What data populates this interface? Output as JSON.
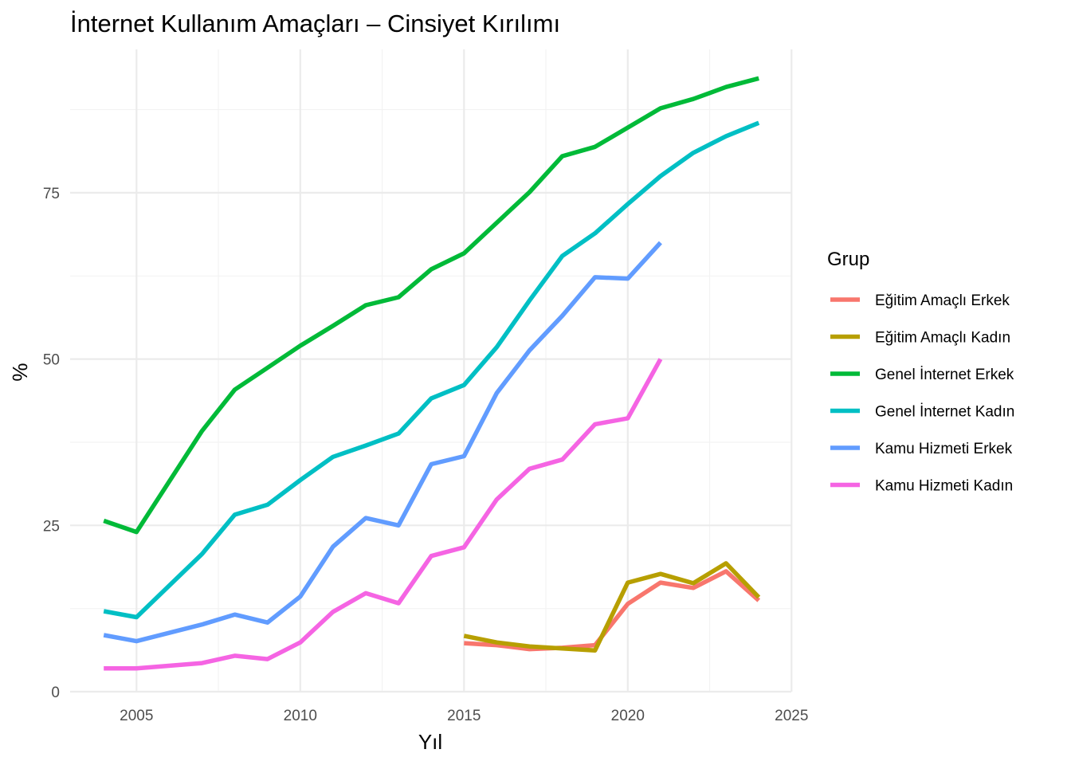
{
  "chart_data": {
    "type": "line",
    "title": "İnternet Kullanım Amaçları – Cinsiyet Kırılımı",
    "xlabel": "Yıl",
    "ylabel": "%",
    "xlim": [
      2003.8,
      2024.2
    ],
    "ylim": [
      0,
      93
    ],
    "x_ticks": [
      2005,
      2010,
      2015,
      2020,
      2025
    ],
    "y_ticks": [
      0,
      25,
      50,
      75
    ],
    "grid": true,
    "legend": {
      "title": "Grup",
      "position": "right"
    },
    "series": [
      {
        "name": "Eğitim Amaçlı Erkek",
        "color": "#F8766D",
        "x": [
          2015,
          2016,
          2017,
          2018,
          2019,
          2020,
          2021,
          2022,
          2023,
          2024
        ],
        "values": [
          7.3,
          7.0,
          6.4,
          6.6,
          7.0,
          13.2,
          16.4,
          15.6,
          18.1,
          13.7
        ]
      },
      {
        "name": "Eğitim Amaçlı Kadın",
        "color": "#B79F00",
        "x": [
          2015,
          2016,
          2017,
          2018,
          2019,
          2020,
          2021,
          2022,
          2023,
          2024
        ],
        "values": [
          8.4,
          7.4,
          6.8,
          6.5,
          6.2,
          16.4,
          17.7,
          16.3,
          19.3,
          14.2
        ]
      },
      {
        "name": "Genel İnternet Erkek",
        "color": "#00BA38",
        "x": [
          2004,
          2005,
          2007,
          2008,
          2009,
          2010,
          2011,
          2012,
          2013,
          2014,
          2015,
          2016,
          2017,
          2018,
          2019,
          2020,
          2021,
          2022,
          2023,
          2024
        ],
        "values": [
          25.7,
          24.0,
          39.2,
          45.4,
          48.7,
          52.0,
          55.0,
          58.1,
          59.3,
          63.5,
          65.9,
          70.5,
          75.1,
          80.5,
          81.9,
          84.8,
          87.7,
          89.1,
          90.9,
          92.2
        ]
      },
      {
        "name": "Genel İnternet Kadın",
        "color": "#00BFC4",
        "x": [
          2004,
          2005,
          2007,
          2008,
          2009,
          2010,
          2011,
          2012,
          2013,
          2014,
          2015,
          2016,
          2017,
          2018,
          2019,
          2020,
          2021,
          2022,
          2023,
          2024
        ],
        "values": [
          12.1,
          11.2,
          20.7,
          26.6,
          28.1,
          31.8,
          35.3,
          37.0,
          38.8,
          44.1,
          46.1,
          51.8,
          58.8,
          65.5,
          68.9,
          73.3,
          77.5,
          81.0,
          83.5,
          85.5
        ]
      },
      {
        "name": "Kamu Hizmeti Erkek",
        "color": "#619CFF",
        "x": [
          2004,
          2005,
          2007,
          2008,
          2009,
          2010,
          2011,
          2012,
          2013,
          2014,
          2015,
          2016,
          2017,
          2018,
          2019,
          2020,
          2021
        ],
        "values": [
          8.5,
          7.6,
          10.1,
          11.6,
          10.4,
          14.3,
          21.8,
          26.1,
          25.0,
          34.2,
          35.4,
          44.9,
          51.3,
          56.5,
          62.3,
          62.1,
          67.5
        ]
      },
      {
        "name": "Kamu Hizmeti Kadın",
        "color": "#F564E3",
        "x": [
          2004,
          2005,
          2007,
          2008,
          2009,
          2010,
          2011,
          2012,
          2013,
          2014,
          2015,
          2016,
          2017,
          2018,
          2019,
          2020,
          2021
        ],
        "values": [
          3.5,
          3.5,
          4.3,
          5.4,
          4.9,
          7.4,
          12.0,
          14.8,
          13.3,
          20.4,
          21.7,
          28.9,
          33.5,
          34.9,
          40.2,
          41.1,
          50.0
        ]
      }
    ]
  }
}
